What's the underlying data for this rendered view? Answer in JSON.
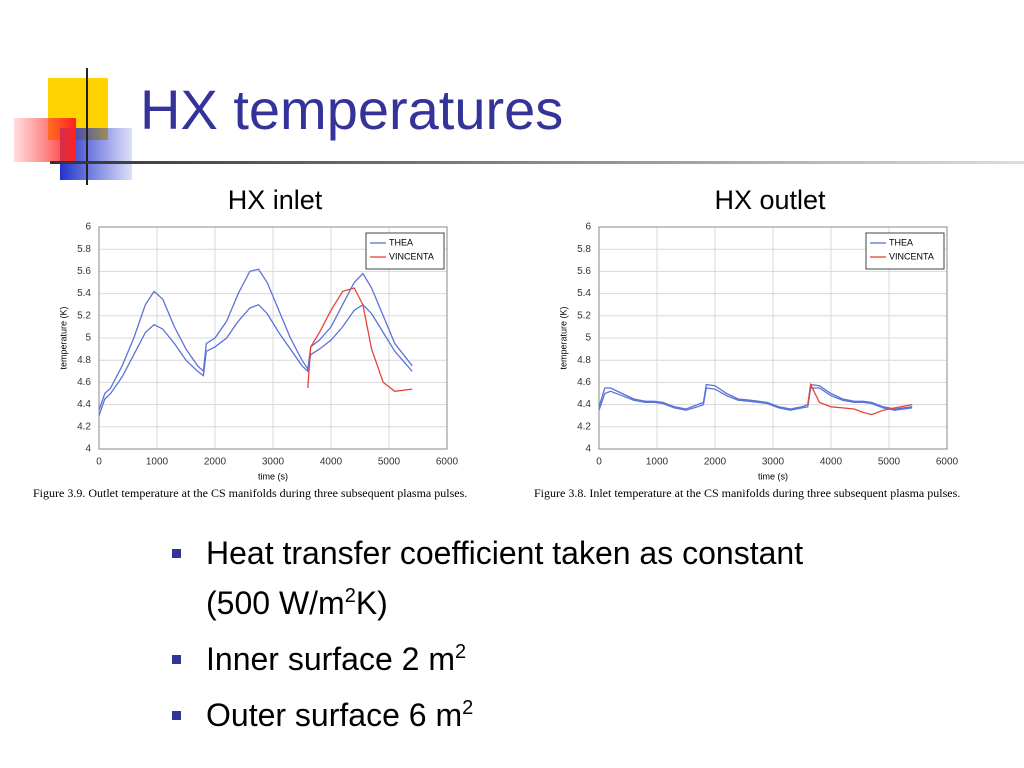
{
  "title": "HX temperatures",
  "chart_data": [
    {
      "type": "line",
      "title": "HX inlet",
      "xlabel": "time (s)",
      "ylabel": "temperature (K)",
      "caption": "Figure 3.9.    Outlet temperature at the CS manifolds during three subsequent plasma pulses.",
      "xlim": [
        0,
        6000
      ],
      "xticks": [
        0,
        1000,
        2000,
        3000,
        4000,
        5000,
        6000
      ],
      "ylim": [
        4,
        6
      ],
      "yticks": [
        4,
        4.2,
        4.4,
        4.6,
        4.8,
        5,
        5.2,
        5.4,
        5.6,
        5.8,
        6
      ],
      "grid": true,
      "legend": "upper right",
      "x": [
        0,
        100,
        200,
        400,
        600,
        800,
        950,
        1100,
        1300,
        1500,
        1700,
        1800,
        1850,
        2000,
        2200,
        2400,
        2600,
        2750,
        2900,
        3100,
        3300,
        3500,
        3600,
        3650,
        3800,
        4000,
        4200,
        4400,
        4550,
        4700,
        4900,
        5100,
        5400
      ],
      "series": [
        {
          "name": "THEA",
          "color": "#5b73d6",
          "values": [
            4.35,
            4.5,
            4.55,
            4.75,
            5.0,
            5.3,
            5.42,
            5.35,
            5.1,
            4.9,
            4.75,
            4.7,
            4.95,
            5.0,
            5.15,
            5.4,
            5.6,
            5.62,
            5.5,
            5.25,
            5.0,
            4.8,
            4.72,
            4.92,
            4.98,
            5.1,
            5.3,
            5.5,
            5.58,
            5.45,
            5.2,
            4.95,
            4.75
          ]
        },
        {
          "name": "THEA",
          "color": "#5b73d6",
          "values": [
            4.3,
            4.45,
            4.5,
            4.65,
            4.85,
            5.05,
            5.12,
            5.08,
            4.95,
            4.8,
            4.7,
            4.66,
            4.88,
            4.92,
            5.0,
            5.15,
            5.27,
            5.3,
            5.22,
            5.05,
            4.9,
            4.75,
            4.7,
            4.85,
            4.9,
            4.98,
            5.1,
            5.25,
            5.3,
            5.22,
            5.05,
            4.88,
            4.7
          ]
        },
        {
          "name": "VINCENTA",
          "color": "#e8433a",
          "values": [
            null,
            null,
            null,
            null,
            null,
            null,
            null,
            null,
            null,
            null,
            null,
            null,
            null,
            null,
            null,
            null,
            null,
            null,
            null,
            null,
            null,
            null,
            4.55,
            4.92,
            5.05,
            5.25,
            5.42,
            5.45,
            5.3,
            4.9,
            4.6,
            4.52,
            4.54
          ]
        }
      ]
    },
    {
      "type": "line",
      "title": "HX outlet",
      "xlabel": "time (s)",
      "ylabel": "temperature (K)",
      "caption": "Figure 3.8.    Inlet temperature at the CS manifolds during three subsequent plasma pulses.",
      "xlim": [
        0,
        6000
      ],
      "xticks": [
        0,
        1000,
        2000,
        3000,
        4000,
        5000,
        6000
      ],
      "ylim": [
        4,
        6
      ],
      "yticks": [
        4,
        4.2,
        4.4,
        4.6,
        4.8,
        5,
        5.2,
        5.4,
        5.6,
        5.8,
        6
      ],
      "grid": true,
      "legend": "upper right",
      "x": [
        0,
        100,
        200,
        400,
        600,
        800,
        950,
        1100,
        1300,
        1500,
        1700,
        1800,
        1850,
        2000,
        2200,
        2400,
        2600,
        2750,
        2900,
        3100,
        3300,
        3500,
        3600,
        3650,
        3800,
        4000,
        4200,
        4400,
        4550,
        4700,
        4900,
        5100,
        5400
      ],
      "series": [
        {
          "name": "THEA",
          "color": "#5b73d6",
          "values": [
            4.38,
            4.55,
            4.55,
            4.5,
            4.45,
            4.43,
            4.43,
            4.42,
            4.38,
            4.36,
            4.4,
            4.42,
            4.58,
            4.57,
            4.5,
            4.45,
            4.44,
            4.43,
            4.42,
            4.38,
            4.36,
            4.38,
            4.4,
            4.58,
            4.57,
            4.5,
            4.45,
            4.43,
            4.43,
            4.42,
            4.38,
            4.36,
            4.38
          ]
        },
        {
          "name": "THEA",
          "color": "#5b73d6",
          "values": [
            4.35,
            4.5,
            4.52,
            4.48,
            4.44,
            4.42,
            4.42,
            4.41,
            4.37,
            4.35,
            4.38,
            4.4,
            4.55,
            4.54,
            4.48,
            4.44,
            4.43,
            4.42,
            4.41,
            4.37,
            4.35,
            4.37,
            4.38,
            4.55,
            4.55,
            4.48,
            4.44,
            4.42,
            4.42,
            4.41,
            4.37,
            4.35,
            4.37
          ]
        },
        {
          "name": "VINCENTA",
          "color": "#e8433a",
          "values": [
            null,
            null,
            null,
            null,
            null,
            null,
            null,
            null,
            null,
            null,
            null,
            null,
            null,
            null,
            null,
            null,
            null,
            null,
            null,
            null,
            null,
            null,
            4.4,
            4.58,
            4.42,
            4.38,
            4.37,
            4.36,
            4.33,
            4.31,
            4.35,
            4.37,
            4.4
          ]
        }
      ]
    }
  ],
  "bullets": [
    [
      "Heat transfer coefficient taken as constant (500 W/m",
      "2",
      "K)"
    ],
    [
      "Inner surface 2 m",
      "2"
    ],
    [
      "Outer surface 6 m",
      "2"
    ]
  ]
}
